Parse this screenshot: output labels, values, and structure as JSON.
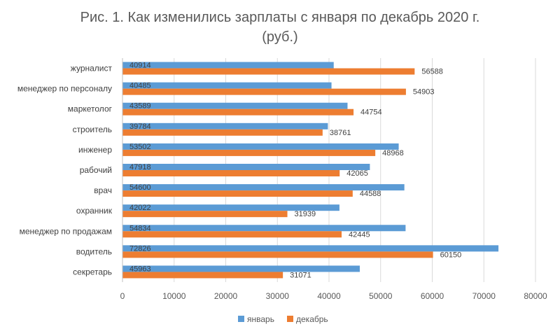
{
  "chart_data": {
    "type": "bar",
    "orientation": "horizontal",
    "title": "Рис. 1. Как изменились зарплаты с января по декабрь 2020 г.",
    "subtitle": "(руб.)",
    "categories": [
      "журналист",
      "менеджер по персоналу",
      "маркетолог",
      "строитель",
      "инженер",
      "рабочий",
      "врач",
      "охранник",
      "менеджер по продажам",
      "водитель",
      "секретарь"
    ],
    "series": [
      {
        "name": "январь",
        "color": "#5B9BD5",
        "values": [
          40914,
          40485,
          43589,
          39784,
          53502,
          47918,
          54600,
          42022,
          54834,
          72826,
          45963
        ]
      },
      {
        "name": "декабрь",
        "color": "#ED7D31",
        "values": [
          56588,
          54903,
          44754,
          38761,
          48968,
          42065,
          44588,
          31939,
          42445,
          60150,
          31071
        ]
      }
    ],
    "xlim": [
      0,
      80000
    ],
    "xticks": [
      0,
      10000,
      20000,
      30000,
      40000,
      50000,
      60000,
      70000,
      80000
    ],
    "grid": true,
    "legend": "bottom"
  }
}
